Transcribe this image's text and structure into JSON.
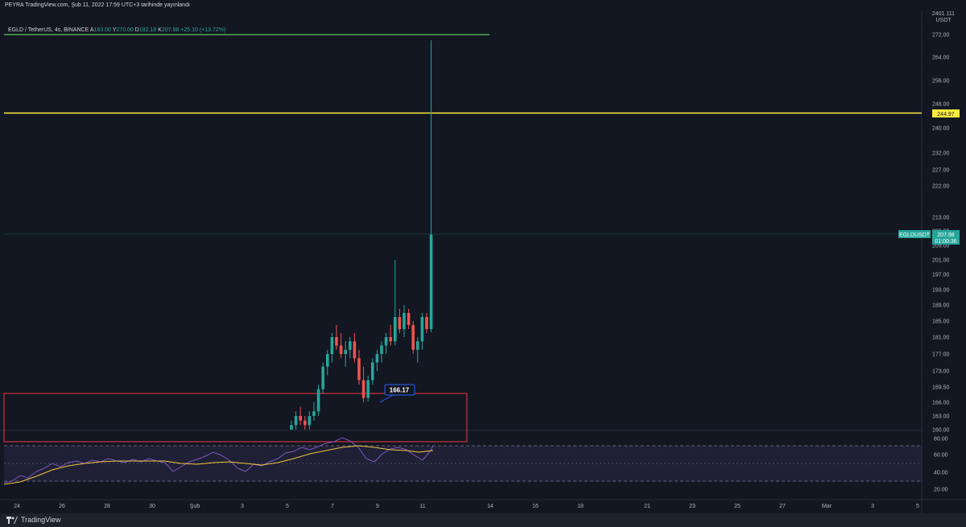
{
  "header": {
    "publish_line": "PEYRA TradingView.com, Şub 11, 2022 17:59 UTC+3 tarihinde yayınlandı"
  },
  "legend": {
    "pair": "EGLD / TetherUS, 4s, BINANCE",
    "o_label": "A",
    "o_value": "183.00",
    "h_label": "Y",
    "h_value": "270.00",
    "l_label": "D",
    "l_value": "182.18",
    "c_label": "K",
    "c_value": "207.98",
    "change": "+25.10 (+13.72%)"
  },
  "price_axis": {
    "labels": [
      "272.00",
      "264.00",
      "256.00",
      "248.00",
      "240.00",
      "232.00",
      "227.00",
      "222.00",
      "213.00",
      "209.00",
      "205.00",
      "201.00",
      "197.00",
      "193.00",
      "189.00",
      "185.00",
      "181.00",
      "177.00",
      "173.00",
      "169.50",
      "166.00",
      "163.00",
      "160.00"
    ],
    "unit_top": "2401.111",
    "unit_bottom": "USDT"
  },
  "rsi_axis": {
    "labels": [
      "80.00",
      "60.00",
      "40.00",
      "20.00"
    ]
  },
  "time_axis": {
    "labels": [
      "24",
      "26",
      "28",
      "30",
      "Şub",
      "3",
      "5",
      "7",
      "9",
      "11",
      "14",
      "16",
      "18",
      "21",
      "23",
      "25",
      "27",
      "Mar",
      "3",
      "5"
    ]
  },
  "tags": {
    "yellow_level": "244.97",
    "symbol": "EGLDUSDT",
    "last_price": "207.98",
    "countdown": "01:00:36",
    "callout_value": "166.17"
  },
  "colors": {
    "background": "#131722",
    "up": "#26a69a",
    "down": "#ef5350",
    "green_line": "#4caf50",
    "yellow_line": "#ffeb3b",
    "box": "#f23645",
    "rsi_line": "#7e57c2",
    "rsi_ma": "#f5c542",
    "callout": "#2962ff"
  },
  "chart_data": {
    "type": "candlestick",
    "symbol": "EGLD / TetherUS",
    "interval": "4s",
    "candles": [
      {
        "o": 160,
        "h": 162,
        "l": 160,
        "c": 161
      },
      {
        "o": 161,
        "h": 164,
        "l": 160,
        "c": 163
      },
      {
        "o": 163,
        "h": 165,
        "l": 161,
        "c": 162
      },
      {
        "o": 162,
        "h": 163,
        "l": 160,
        "c": 161
      },
      {
        "o": 161,
        "h": 164,
        "l": 160,
        "c": 163
      },
      {
        "o": 163,
        "h": 166,
        "l": 162,
        "c": 164
      },
      {
        "o": 164,
        "h": 170,
        "l": 163,
        "c": 169
      },
      {
        "o": 169,
        "h": 175,
        "l": 168,
        "c": 174
      },
      {
        "o": 174,
        "h": 178,
        "l": 172,
        "c": 177
      },
      {
        "o": 177,
        "h": 182,
        "l": 175,
        "c": 181
      },
      {
        "o": 181,
        "h": 184,
        "l": 178,
        "c": 179
      },
      {
        "o": 179,
        "h": 182,
        "l": 176,
        "c": 177
      },
      {
        "o": 177,
        "h": 180,
        "l": 174,
        "c": 178
      },
      {
        "o": 178,
        "h": 181,
        "l": 176,
        "c": 180
      },
      {
        "o": 180,
        "h": 182,
        "l": 175,
        "c": 176
      },
      {
        "o": 176,
        "h": 178,
        "l": 170,
        "c": 171
      },
      {
        "o": 171,
        "h": 174,
        "l": 166,
        "c": 167
      },
      {
        "o": 167,
        "h": 172,
        "l": 166.17,
        "c": 171
      },
      {
        "o": 171,
        "h": 176,
        "l": 170,
        "c": 175
      },
      {
        "o": 175,
        "h": 178,
        "l": 173,
        "c": 177
      },
      {
        "o": 177,
        "h": 180,
        "l": 175,
        "c": 179
      },
      {
        "o": 179,
        "h": 182,
        "l": 177,
        "c": 181
      },
      {
        "o": 181,
        "h": 184,
        "l": 179,
        "c": 180
      },
      {
        "o": 180,
        "h": 201,
        "l": 179,
        "c": 186
      },
      {
        "o": 186,
        "h": 188,
        "l": 182,
        "c": 183
      },
      {
        "o": 183,
        "h": 189,
        "l": 181,
        "c": 187
      },
      {
        "o": 187,
        "h": 188,
        "l": 183,
        "c": 184
      },
      {
        "o": 184,
        "h": 185,
        "l": 177,
        "c": 178
      },
      {
        "o": 178,
        "h": 181,
        "l": 175,
        "c": 180
      },
      {
        "o": 180,
        "h": 187,
        "l": 178,
        "c": 186
      },
      {
        "o": 186,
        "h": 187,
        "l": 182,
        "c": 183
      },
      {
        "o": 183,
        "h": 270,
        "l": 182.18,
        "c": 207.98
      }
    ],
    "levels": {
      "green": 272.0,
      "yellow": 244.97,
      "box_top": 168.0
    },
    "rsi_bands": {
      "upper": 70,
      "middle": 50,
      "lower": 30
    },
    "rsi_ylim": [
      20,
      80
    ],
    "price_ylim": [
      160,
      272
    ],
    "last_price": 207.98
  }
}
